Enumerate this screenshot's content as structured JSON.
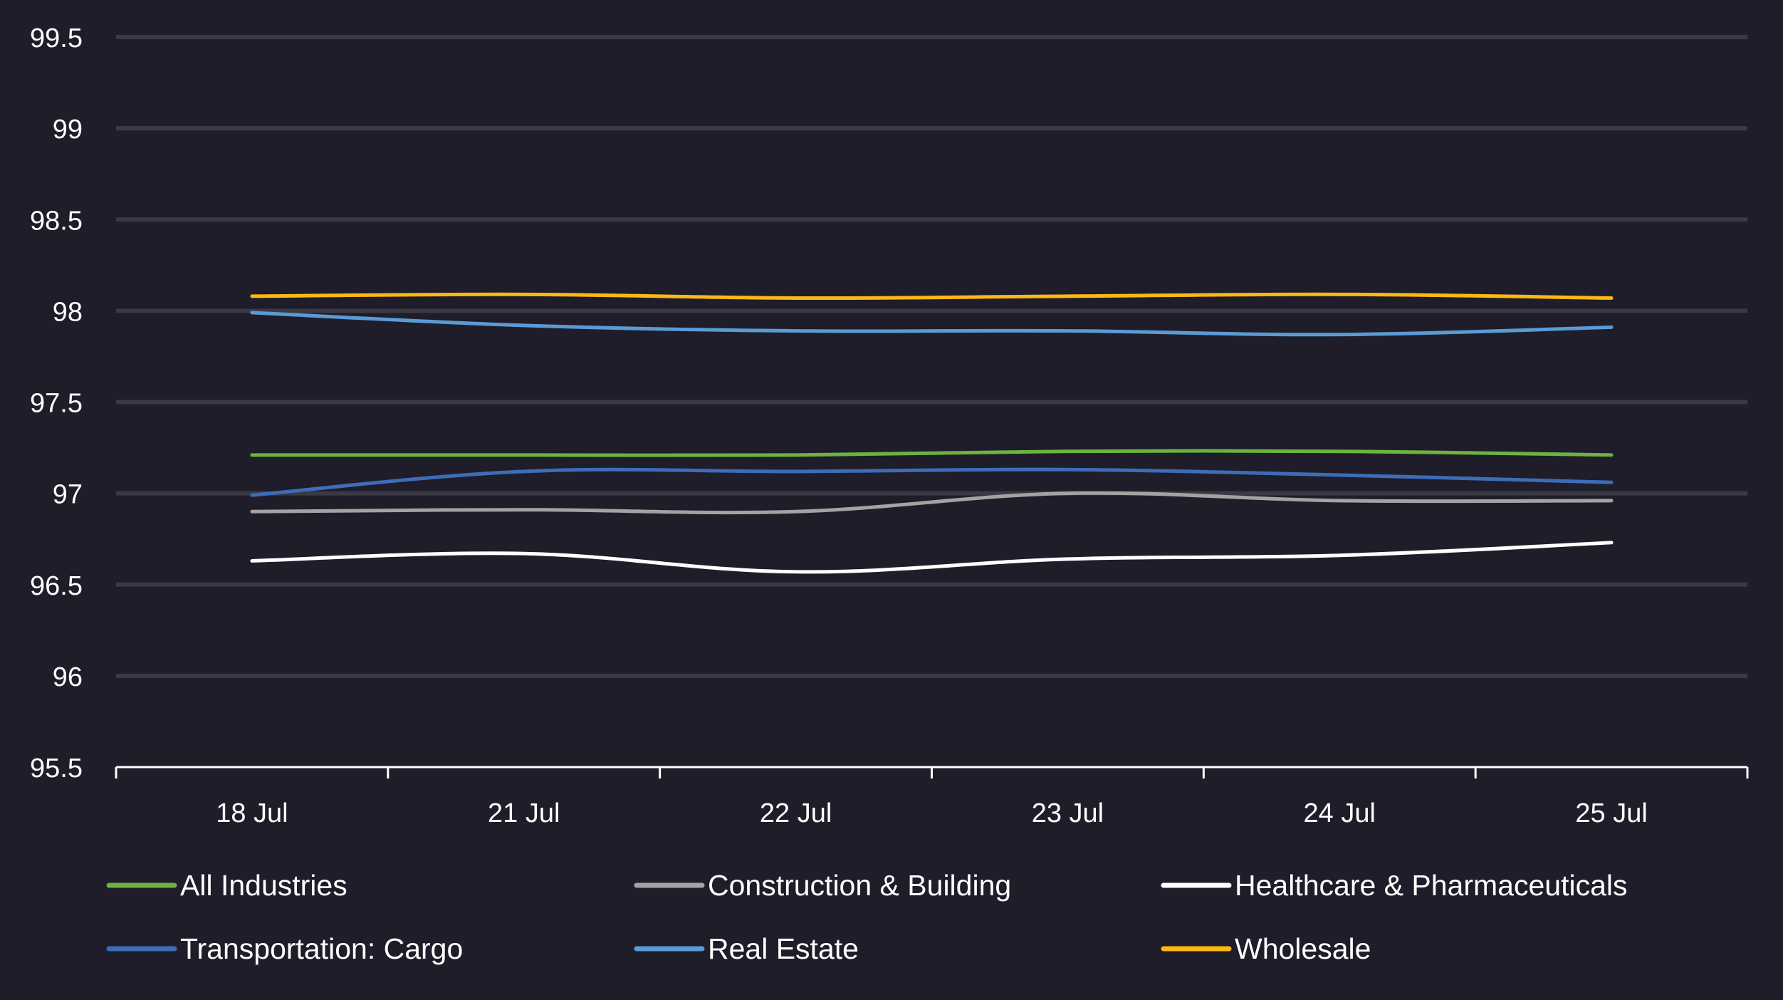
{
  "chart_data": {
    "type": "line",
    "title": "",
    "xlabel": "",
    "ylabel": "",
    "categories": [
      "18 Jul",
      "21 Jul",
      "22 Jul",
      "23 Jul",
      "24 Jul",
      "25 Jul"
    ],
    "ylim": [
      95.5,
      99.5
    ],
    "yticks": [
      95.5,
      96,
      96.5,
      97,
      97.5,
      98,
      98.5,
      99,
      99.5
    ],
    "ytick_labels": [
      "95.5",
      "96",
      "96.5",
      "97",
      "97.5",
      "98",
      "98.5",
      "99",
      "99.5"
    ],
    "grid": true,
    "legend_position": "bottom",
    "background_color": "#1e1d29",
    "grid_color": "#3a3a45",
    "axis_color": "#ffffff",
    "series": [
      {
        "name": "All Industries",
        "color": "#6db33f",
        "values": [
          97.21,
          97.21,
          97.21,
          97.23,
          97.23,
          97.21
        ]
      },
      {
        "name": "Construction & Building",
        "color": "#a3a3a3",
        "values": [
          96.9,
          96.91,
          96.9,
          97.0,
          96.96,
          96.96
        ]
      },
      {
        "name": "Healthcare & Pharmaceuticals",
        "color": "#ffffff",
        "values": [
          96.63,
          96.67,
          96.57,
          96.64,
          96.66,
          96.73
        ]
      },
      {
        "name": "Transportation: Cargo",
        "color": "#3d6cb9",
        "values": [
          96.99,
          97.12,
          97.12,
          97.13,
          97.1,
          97.06
        ]
      },
      {
        "name": "Real Estate",
        "color": "#5b9bd5",
        "values": [
          97.99,
          97.92,
          97.89,
          97.89,
          97.87,
          97.91
        ]
      },
      {
        "name": "Wholesale",
        "color": "#fdb813",
        "values": [
          98.08,
          98.09,
          98.07,
          98.08,
          98.09,
          98.07
        ]
      }
    ]
  }
}
